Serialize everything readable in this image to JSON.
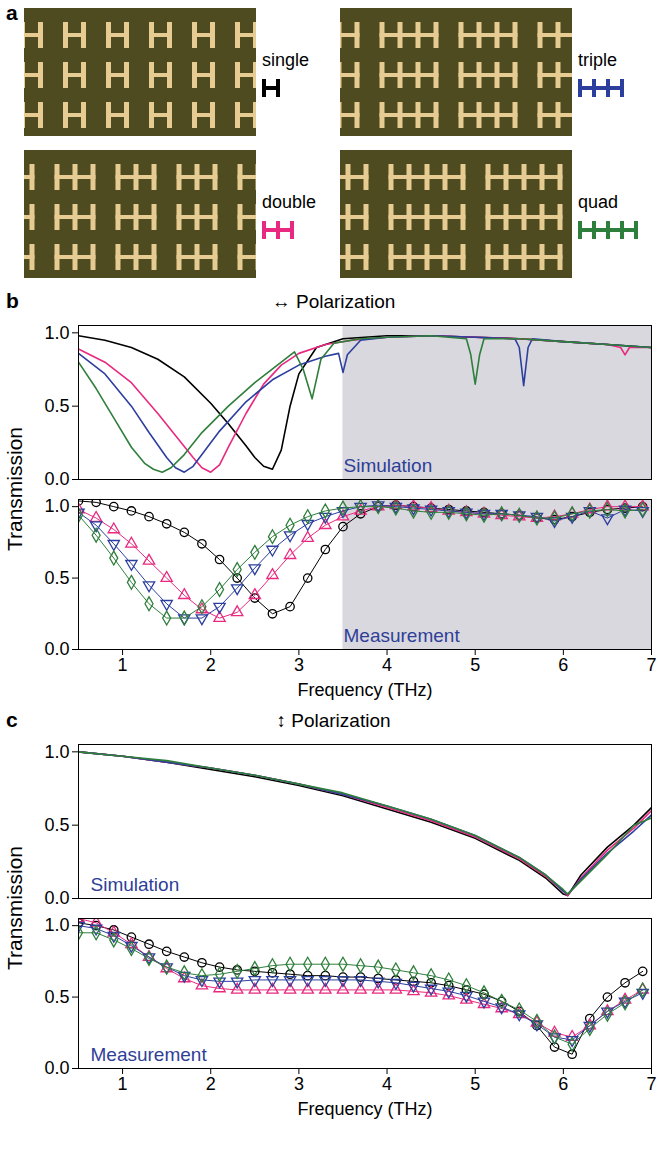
{
  "panel_a": {
    "letter": "a",
    "items": [
      {
        "label": "single",
        "units": 1
      },
      {
        "label": "triple",
        "units": 3
      },
      {
        "label": "double",
        "units": 2
      },
      {
        "label": "quad",
        "units": 4
      }
    ]
  },
  "chart_data": [
    {
      "panel": "b",
      "heading": "↔ Polarization",
      "type": "line",
      "ylabel": "Transmission",
      "xlabel": "Frequency (THz)",
      "xlim": [
        0.5,
        7
      ],
      "xticks": [
        1,
        2,
        3,
        4,
        5,
        6,
        7
      ],
      "shaded_x": [
        3.5,
        7
      ],
      "subplots": [
        {
          "annotation": "Simulation",
          "type": "line",
          "tick_labels": "y",
          "ylim": [
            0,
            1.05
          ],
          "yticks": [
            {
              "value": 0,
              "label": "0.0"
            },
            {
              "value": 0.5,
              "label": "0.5"
            },
            {
              "value": 1,
              "label": "1.0"
            }
          ],
          "series": [
            {
              "name": "single",
              "color": "#000000",
              "x": [
                0.5,
                0.8,
                1.1,
                1.4,
                1.7,
                2.0,
                2.2,
                2.4,
                2.5,
                2.6,
                2.7,
                2.8,
                2.9,
                3.0,
                3.2,
                3.5,
                4.0,
                4.5,
                5.0,
                5.5,
                6.0,
                6.5,
                7.0
              ],
              "values": [
                0.98,
                0.95,
                0.9,
                0.82,
                0.7,
                0.52,
                0.38,
                0.23,
                0.15,
                0.09,
                0.07,
                0.2,
                0.5,
                0.72,
                0.9,
                0.96,
                0.98,
                0.98,
                0.97,
                0.96,
                0.94,
                0.92,
                0.9
              ]
            },
            {
              "name": "double",
              "color": "#e8297f",
              "x": [
                0.5,
                0.8,
                1.1,
                1.4,
                1.6,
                1.8,
                1.9,
                2.0,
                2.1,
                2.2,
                2.4,
                2.6,
                2.8,
                3.0,
                3.3,
                3.6,
                4.0,
                4.5,
                5.0,
                5.5,
                6.0,
                6.5,
                6.65,
                6.7,
                6.75,
                7.0
              ],
              "values": [
                0.89,
                0.8,
                0.66,
                0.45,
                0.3,
                0.15,
                0.08,
                0.05,
                0.1,
                0.22,
                0.45,
                0.65,
                0.78,
                0.86,
                0.92,
                0.95,
                0.97,
                0.98,
                0.97,
                0.96,
                0.94,
                0.92,
                0.9,
                0.85,
                0.9,
                0.9
              ]
            },
            {
              "name": "triple",
              "color": "#2d3f9e",
              "x": [
                0.5,
                0.8,
                1.1,
                1.3,
                1.5,
                1.6,
                1.7,
                1.8,
                1.9,
                2.1,
                2.4,
                2.7,
                3.0,
                3.3,
                3.45,
                3.5,
                3.55,
                3.7,
                4.0,
                4.5,
                5.0,
                5.45,
                5.5,
                5.55,
                5.6,
                5.65,
                6.0,
                6.5,
                7.0
              ],
              "values": [
                0.86,
                0.72,
                0.5,
                0.32,
                0.15,
                0.08,
                0.05,
                0.09,
                0.17,
                0.33,
                0.53,
                0.68,
                0.78,
                0.84,
                0.86,
                0.73,
                0.85,
                0.95,
                0.97,
                0.98,
                0.97,
                0.96,
                0.9,
                0.64,
                0.9,
                0.96,
                0.94,
                0.92,
                0.9
              ]
            },
            {
              "name": "quad",
              "color": "#2f7f3c",
              "x": [
                0.5,
                0.7,
                0.9,
                1.1,
                1.25,
                1.35,
                1.45,
                1.55,
                1.7,
                1.9,
                2.2,
                2.5,
                2.8,
                2.95,
                3.05,
                3.15,
                3.25,
                3.4,
                3.7,
                4.0,
                4.5,
                4.9,
                4.95,
                5.0,
                5.05,
                5.1,
                5.5,
                6.0,
                6.5,
                7.0
              ],
              "values": [
                0.8,
                0.62,
                0.42,
                0.22,
                0.11,
                0.07,
                0.05,
                0.08,
                0.17,
                0.32,
                0.5,
                0.66,
                0.8,
                0.87,
                0.75,
                0.55,
                0.82,
                0.93,
                0.96,
                0.97,
                0.98,
                0.96,
                0.85,
                0.65,
                0.85,
                0.96,
                0.96,
                0.94,
                0.92,
                0.9
              ]
            }
          ]
        },
        {
          "annotation": "Measurement",
          "type": "line",
          "ylim": [
            0,
            1.05
          ],
          "yticks": [
            {
              "value": 0,
              "label": "0.0"
            },
            {
              "value": 0.5,
              "label": "0.5"
            },
            {
              "value": 1,
              "label": "1.0"
            }
          ],
          "x": [
            0.5,
            0.7,
            0.9,
            1.1,
            1.3,
            1.5,
            1.7,
            1.9,
            2.1,
            2.3,
            2.5,
            2.7,
            2.9,
            3.1,
            3.3,
            3.5,
            3.7,
            3.9,
            4.1,
            4.3,
            4.5,
            4.7,
            4.9,
            5.1,
            5.3,
            5.5,
            5.7,
            5.9,
            6.1,
            6.3,
            6.5,
            6.7,
            6.9
          ],
          "series": [
            {
              "name": "single",
              "color": "#000000",
              "marker": "circle",
              "values": [
                1.04,
                1.03,
                1.0,
                0.97,
                0.93,
                0.88,
                0.82,
                0.74,
                0.63,
                0.5,
                0.36,
                0.25,
                0.3,
                0.5,
                0.7,
                0.86,
                0.95,
                1.0,
                1.01,
                1.0,
                0.99,
                0.98,
                0.97,
                0.96,
                0.95,
                0.94,
                0.92,
                0.91,
                0.93,
                0.96,
                0.98,
                0.99,
                1.0
              ]
            },
            {
              "name": "double",
              "color": "#e8297f",
              "marker": "triangle-up",
              "values": [
                0.98,
                0.92,
                0.84,
                0.74,
                0.62,
                0.5,
                0.38,
                0.28,
                0.22,
                0.26,
                0.38,
                0.52,
                0.66,
                0.78,
                0.87,
                0.93,
                0.97,
                1.0,
                1.01,
                1.0,
                0.99,
                0.97,
                0.96,
                0.95,
                0.94,
                0.93,
                0.92,
                0.93,
                0.95,
                0.98,
                1.0,
                1.0,
                1.0
              ]
            },
            {
              "name": "triple",
              "color": "#2d3f9e",
              "marker": "triangle-down",
              "values": [
                0.96,
                0.87,
                0.74,
                0.6,
                0.45,
                0.32,
                0.22,
                0.22,
                0.3,
                0.43,
                0.57,
                0.7,
                0.8,
                0.88,
                0.93,
                0.97,
                1.0,
                1.01,
                1.0,
                0.99,
                0.98,
                0.97,
                0.96,
                0.95,
                0.95,
                0.94,
                0.93,
                0.9,
                0.93,
                0.97,
                0.92,
                0.98,
                0.97
              ]
            },
            {
              "name": "quad",
              "color": "#2f7f3c",
              "marker": "diamond",
              "values": [
                0.94,
                0.8,
                0.64,
                0.47,
                0.32,
                0.22,
                0.22,
                0.3,
                0.42,
                0.56,
                0.68,
                0.79,
                0.87,
                0.93,
                0.97,
                0.99,
                1.0,
                1.0,
                0.99,
                0.97,
                0.96,
                0.96,
                0.95,
                0.94,
                0.95,
                0.94,
                0.92,
                0.92,
                0.95,
                0.97,
                0.98,
                0.97,
                0.98
              ]
            }
          ]
        }
      ]
    },
    {
      "panel": "c",
      "heading": "↕ Polarization",
      "type": "line",
      "ylabel": "Transmission",
      "xlabel": "Frequency (THz)",
      "xlim": [
        0.5,
        7
      ],
      "xticks": [
        1,
        2,
        3,
        4,
        5,
        6,
        7
      ],
      "subplots": [
        {
          "annotation": "Simulation",
          "type": "line",
          "tick_labels": "y",
          "ylim": [
            0,
            1.05
          ],
          "yticks": [
            {
              "value": 0,
              "label": "0.0"
            },
            {
              "value": 0.5,
              "label": "0.5"
            },
            {
              "value": 1,
              "label": "1.0"
            }
          ],
          "x": [
            0.5,
            1,
            1.5,
            2,
            2.5,
            3,
            3.5,
            4,
            4.5,
            5,
            5.5,
            5.8,
            6.0,
            6.05,
            6.2,
            6.5,
            6.8,
            7.0
          ],
          "series": [
            {
              "name": "single",
              "color": "#000000",
              "values": [
                1.0,
                0.97,
                0.93,
                0.88,
                0.83,
                0.77,
                0.7,
                0.61,
                0.52,
                0.41,
                0.26,
                0.14,
                0.03,
                0.02,
                0.16,
                0.35,
                0.5,
                0.62
              ]
            },
            {
              "name": "double",
              "color": "#e8297f",
              "values": [
                1.0,
                0.97,
                0.93,
                0.89,
                0.84,
                0.78,
                0.71,
                0.62,
                0.53,
                0.42,
                0.27,
                0.15,
                0.05,
                0.02,
                0.14,
                0.33,
                0.48,
                0.6
              ]
            },
            {
              "name": "triple",
              "color": "#2d3f9e",
              "values": [
                1.0,
                0.97,
                0.93,
                0.89,
                0.84,
                0.78,
                0.71,
                0.63,
                0.54,
                0.43,
                0.28,
                0.16,
                0.05,
                0.03,
                0.13,
                0.31,
                0.46,
                0.57
              ]
            },
            {
              "name": "quad",
              "color": "#2f7f3c",
              "values": [
                1.0,
                0.97,
                0.94,
                0.89,
                0.84,
                0.78,
                0.72,
                0.63,
                0.54,
                0.43,
                0.28,
                0.16,
                0.06,
                0.03,
                0.12,
                0.3,
                0.5,
                0.55
              ]
            }
          ]
        },
        {
          "annotation": "Measurement",
          "type": "line",
          "ylim": [
            0,
            1.05
          ],
          "yticks": [
            {
              "value": 0,
              "label": "0.0"
            },
            {
              "value": 0.5,
              "label": "0.5"
            },
            {
              "value": 1,
              "label": "1.0"
            }
          ],
          "x": [
            0.5,
            0.7,
            0.9,
            1.1,
            1.3,
            1.5,
            1.7,
            1.9,
            2.1,
            2.3,
            2.5,
            2.7,
            2.9,
            3.1,
            3.3,
            3.5,
            3.7,
            3.9,
            4.1,
            4.3,
            4.5,
            4.7,
            4.9,
            5.1,
            5.3,
            5.5,
            5.7,
            5.9,
            6.1,
            6.3,
            6.5,
            6.7,
            6.9
          ],
          "series": [
            {
              "name": "single",
              "color": "#000000",
              "marker": "circle",
              "values": [
                1.02,
                1.0,
                0.97,
                0.92,
                0.87,
                0.82,
                0.78,
                0.74,
                0.71,
                0.69,
                0.68,
                0.67,
                0.66,
                0.65,
                0.65,
                0.64,
                0.64,
                0.63,
                0.62,
                0.61,
                0.6,
                0.58,
                0.55,
                0.52,
                0.47,
                0.4,
                0.3,
                0.15,
                0.1,
                0.35,
                0.5,
                0.6,
                0.68
              ]
            },
            {
              "name": "double",
              "color": "#e8297f",
              "marker": "triangle-up",
              "values": [
                1.05,
                1.02,
                0.95,
                0.87,
                0.78,
                0.7,
                0.63,
                0.58,
                0.56,
                0.55,
                0.55,
                0.55,
                0.55,
                0.55,
                0.55,
                0.55,
                0.55,
                0.55,
                0.55,
                0.54,
                0.53,
                0.51,
                0.48,
                0.45,
                0.42,
                0.38,
                0.32,
                0.25,
                0.22,
                0.3,
                0.4,
                0.48,
                0.55
              ]
            },
            {
              "name": "triple",
              "color": "#2d3f9e",
              "marker": "triangle-down",
              "values": [
                1.0,
                0.98,
                0.93,
                0.86,
                0.78,
                0.71,
                0.65,
                0.62,
                0.61,
                0.61,
                0.62,
                0.62,
                0.62,
                0.62,
                0.62,
                0.62,
                0.62,
                0.61,
                0.6,
                0.58,
                0.56,
                0.54,
                0.51,
                0.47,
                0.43,
                0.38,
                0.31,
                0.22,
                0.2,
                0.3,
                0.4,
                0.47,
                0.53
              ]
            },
            {
              "name": "quad",
              "color": "#2f7f3c",
              "marker": "diamond",
              "values": [
                0.95,
                0.95,
                0.9,
                0.84,
                0.77,
                0.71,
                0.67,
                0.65,
                0.66,
                0.68,
                0.7,
                0.72,
                0.73,
                0.73,
                0.73,
                0.73,
                0.72,
                0.71,
                0.69,
                0.67,
                0.65,
                0.62,
                0.58,
                0.53,
                0.47,
                0.41,
                0.33,
                0.22,
                0.17,
                0.28,
                0.38,
                0.46,
                0.55
              ]
            }
          ]
        }
      ]
    }
  ]
}
